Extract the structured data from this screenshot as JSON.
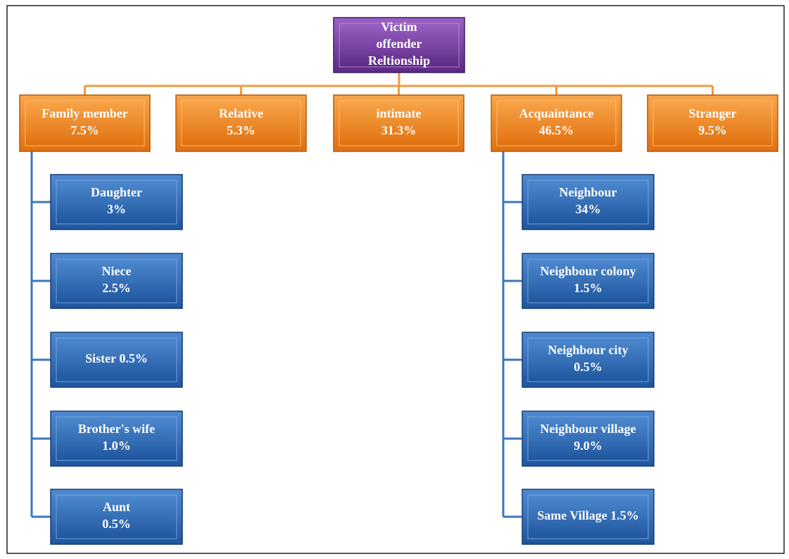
{
  "root": {
    "lines": [
      "Victim",
      "offender",
      "Reltionship"
    ]
  },
  "categories": [
    {
      "lines": [
        "Family member",
        "7.5%"
      ],
      "children": [
        {
          "lines": [
            "Daughter",
            "3%"
          ]
        },
        {
          "lines": [
            "Niece",
            "2.5%"
          ]
        },
        {
          "lines": [
            "Sister 0.5%"
          ]
        },
        {
          "lines": [
            "Brother's wife",
            "1.0%"
          ]
        },
        {
          "lines": [
            "Aunt",
            "0.5%"
          ]
        }
      ]
    },
    {
      "lines": [
        "Relative",
        "5.3%"
      ],
      "children": []
    },
    {
      "lines": [
        "intimate",
        "31.3%"
      ],
      "children": []
    },
    {
      "lines": [
        "Acquaintance",
        "46.5%"
      ],
      "children": [
        {
          "lines": [
            "Neighbour",
            "34%"
          ]
        },
        {
          "lines": [
            "Neighbour colony",
            "1.5%"
          ]
        },
        {
          "lines": [
            "Neighbour city",
            "0.5%"
          ]
        },
        {
          "lines": [
            "Neighbour village",
            "9.0%"
          ]
        },
        {
          "lines": [
            "Same Village 1.5%"
          ]
        }
      ]
    },
    {
      "lines": [
        "Stranger",
        "9.5%"
      ],
      "children": []
    }
  ]
}
